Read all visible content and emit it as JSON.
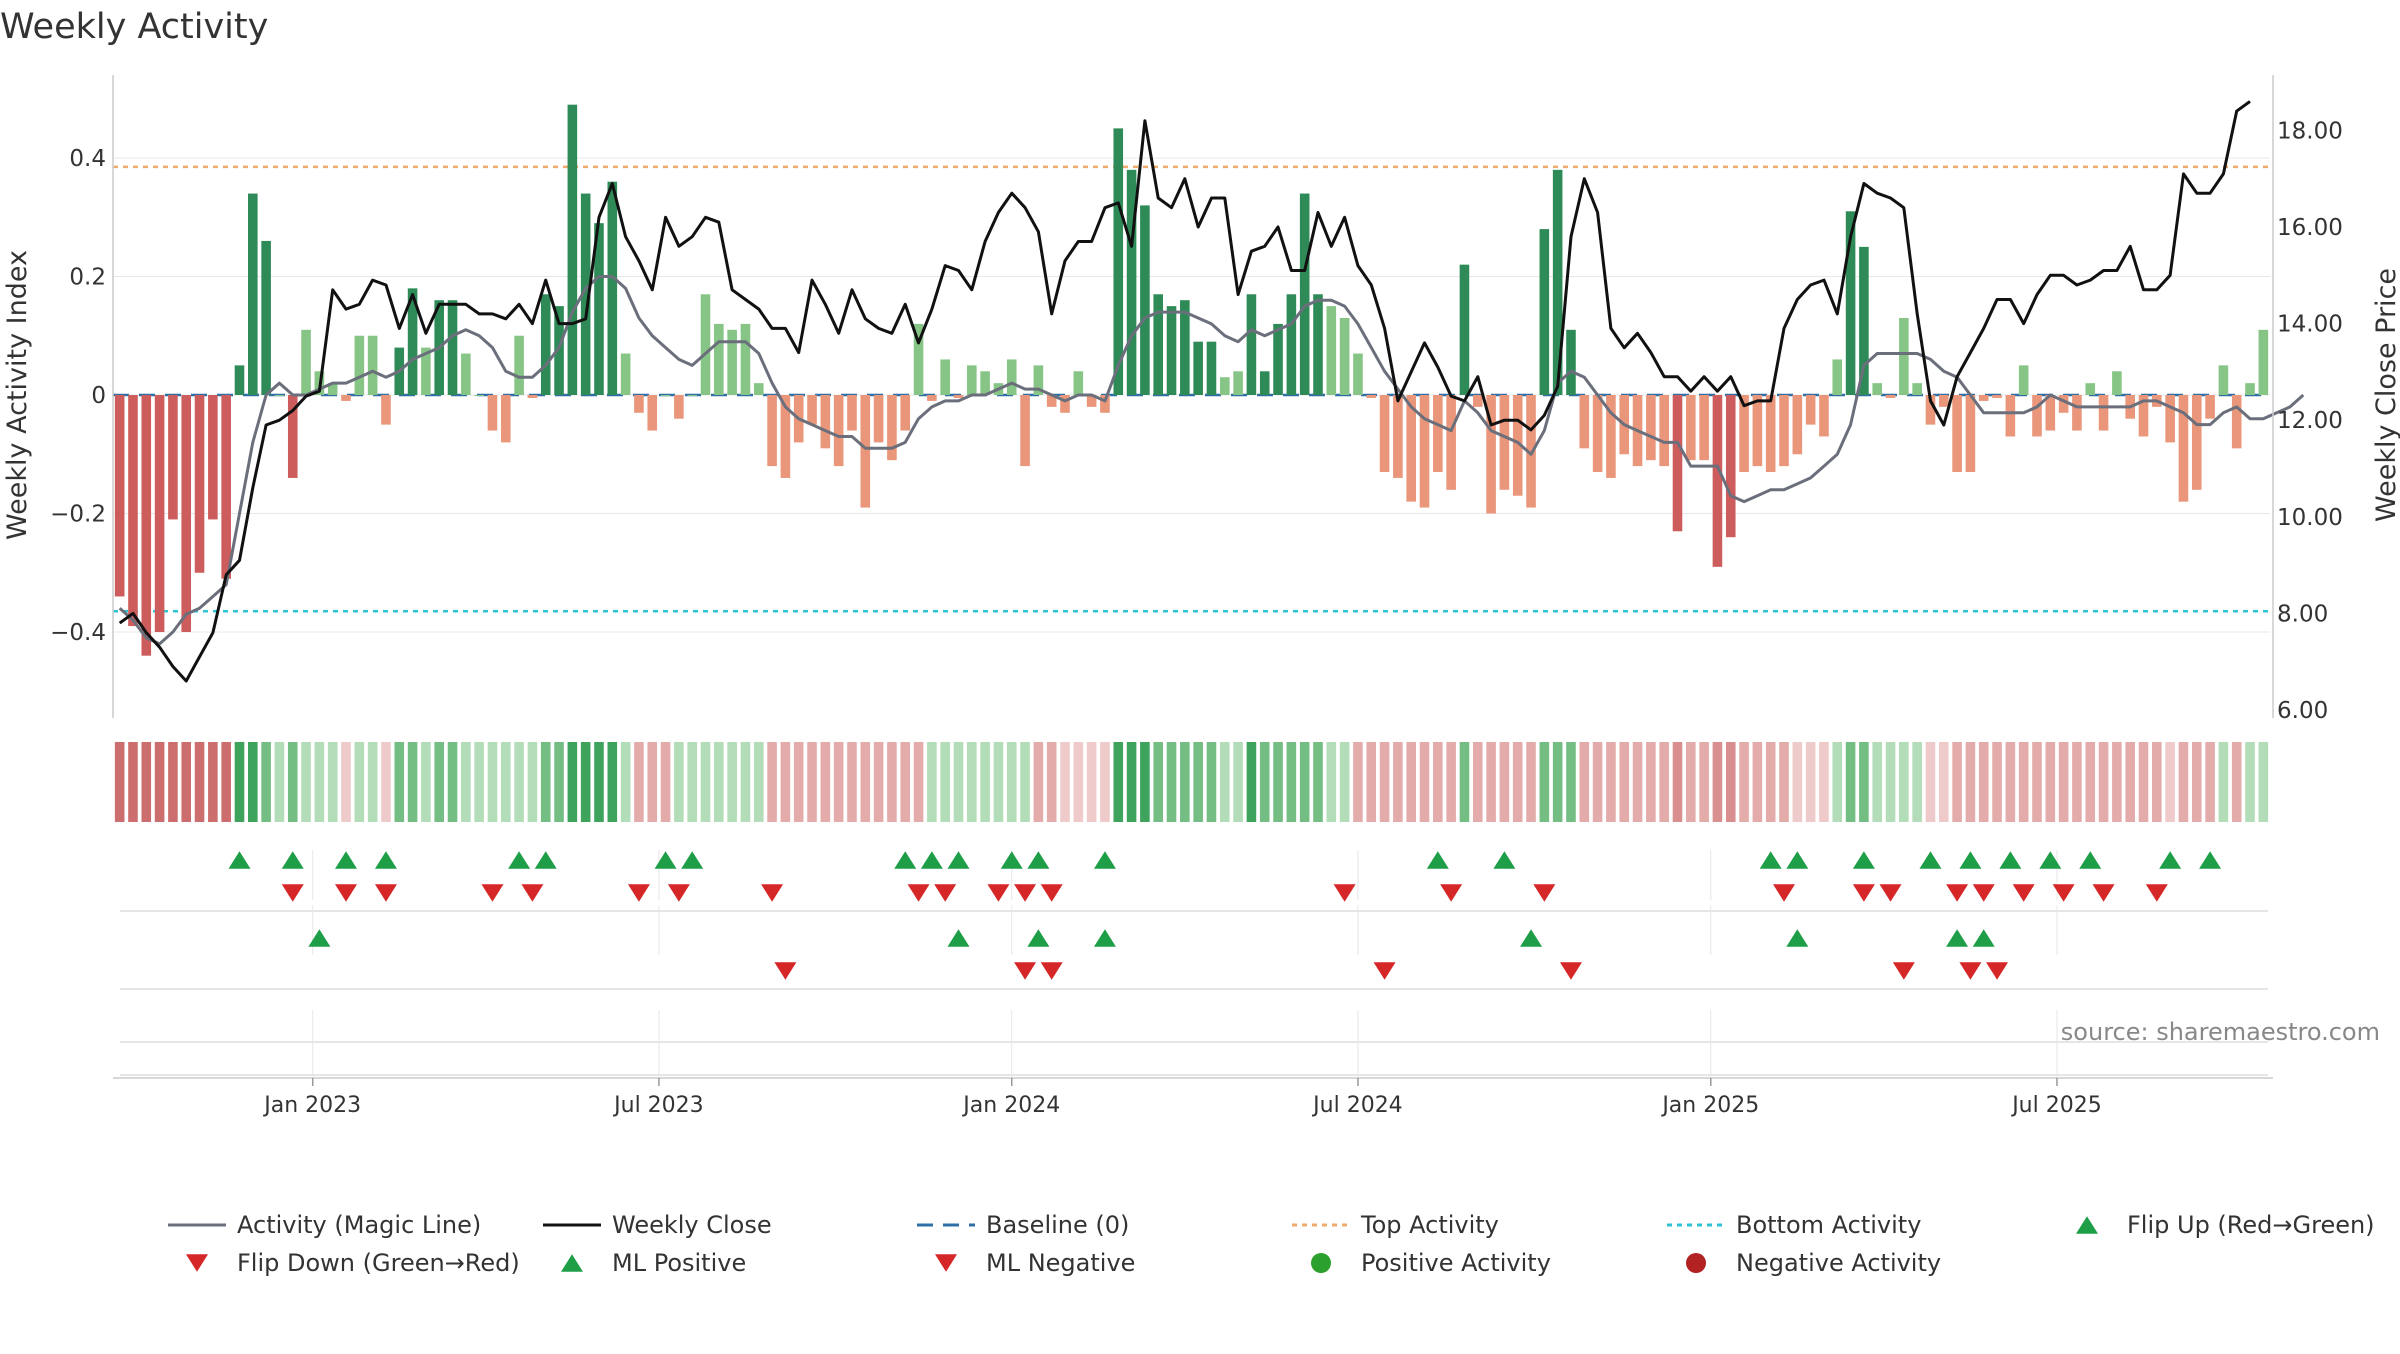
{
  "chart_data": {
    "type": "bar",
    "title": "Weekly Activity",
    "ylabel": "Weekly Activity Index",
    "y2label": "Weekly Close Price",
    "source": "source: sharemaestro.com",
    "ylim": [
      -0.53,
      0.53
    ],
    "y2lim": [
      6.0,
      18.6
    ],
    "yticks": [
      {
        "value": 0.4,
        "label": "0.4"
      },
      {
        "value": 0.2,
        "label": "0.2"
      },
      {
        "value": 0,
        "label": "0"
      },
      {
        "value": -0.2,
        "label": "−0.2"
      },
      {
        "value": -0.4,
        "label": "−0.4"
      }
    ],
    "y2ticks": [
      {
        "value": 18,
        "label": "18.00"
      },
      {
        "value": 16,
        "label": "16.00"
      },
      {
        "value": 14,
        "label": "14.00"
      },
      {
        "value": 12,
        "label": "12.00"
      },
      {
        "value": 10,
        "label": "10.00"
      },
      {
        "value": 8,
        "label": "8.00"
      },
      {
        "value": 6,
        "label": "6.00"
      }
    ],
    "xticks": [
      {
        "index": 14.5,
        "label": "Jan 2023"
      },
      {
        "index": 40.5,
        "label": "Jul 2023"
      },
      {
        "index": 67,
        "label": "Jan 2024"
      },
      {
        "index": 93,
        "label": "Jul 2024"
      },
      {
        "index": 119.5,
        "label": "Jan 2025"
      },
      {
        "index": 145.5,
        "label": "Jul 2025"
      }
    ],
    "top_activity": 0.385,
    "bottom_activity": -0.365,
    "activity": [
      -0.34,
      -0.39,
      -0.44,
      -0.4,
      -0.21,
      -0.4,
      -0.3,
      -0.21,
      -0.31,
      0.05,
      0.34,
      0.26,
      0.0,
      -0.14,
      0.11,
      0.04,
      0.02,
      -0.01,
      0.1,
      0.1,
      -0.05,
      0.08,
      0.18,
      0.08,
      0.16,
      0.16,
      0.07,
      0.0,
      -0.06,
      -0.08,
      0.1,
      -0.005,
      0.17,
      0.15,
      0.49,
      0.34,
      0.29,
      0.36,
      0.07,
      -0.03,
      -0.06,
      0.0,
      -0.04,
      0.0,
      0.17,
      0.12,
      0.11,
      0.12,
      0.02,
      -0.12,
      -0.14,
      -0.08,
      -0.05,
      -0.09,
      -0.12,
      -0.06,
      -0.19,
      -0.08,
      -0.11,
      -0.06,
      0.12,
      -0.01,
      0.06,
      -0.005,
      0.05,
      0.04,
      0.02,
      0.06,
      -0.12,
      0.05,
      -0.02,
      -0.03,
      0.04,
      -0.02,
      -0.03,
      0.45,
      0.38,
      0.32,
      0.17,
      0.15,
      0.16,
      0.09,
      0.09,
      0.03,
      0.04,
      0.17,
      0.04,
      0.12,
      0.17,
      0.34,
      0.17,
      0.15,
      0.13,
      0.07,
      -0.005,
      -0.13,
      -0.14,
      -0.18,
      -0.19,
      -0.13,
      -0.16,
      0.22,
      -0.02,
      -0.2,
      -0.16,
      -0.17,
      -0.19,
      0.28,
      0.38,
      0.11,
      -0.09,
      -0.13,
      -0.14,
      -0.1,
      -0.12,
      -0.11,
      -0.12,
      -0.23,
      -0.11,
      -0.11,
      -0.29,
      -0.24,
      -0.13,
      -0.12,
      -0.13,
      -0.12,
      -0.1,
      -0.05,
      -0.07,
      0.06,
      0.31,
      0.25,
      0.02,
      -0.005,
      0.13,
      0.02,
      -0.05,
      -0.02,
      -0.13,
      -0.13,
      -0.01,
      -0.005,
      -0.07,
      0.05,
      -0.07,
      -0.06,
      -0.03,
      -0.06,
      0.02,
      -0.06,
      0.04,
      -0.04,
      -0.07,
      -0.02,
      -0.08,
      -0.18,
      -0.16,
      -0.04,
      0.05,
      -0.09,
      0.02,
      0.11
    ],
    "heat": [
      -0.8,
      -0.8,
      -0.8,
      -0.8,
      -0.8,
      -0.8,
      -0.8,
      -0.8,
      -0.8,
      0.8,
      0.8,
      0.5,
      0.3,
      0.5,
      0.3,
      0.3,
      0.3,
      -0.2,
      0.3,
      0.3,
      -0.2,
      0.5,
      0.5,
      0.3,
      0.5,
      0.5,
      0.3,
      0.3,
      0.3,
      0.3,
      0.3,
      0.3,
      0.5,
      0.5,
      0.8,
      0.8,
      0.8,
      0.8,
      0.3,
      -0.3,
      -0.3,
      -0.3,
      0.3,
      0.3,
      0.3,
      0.3,
      0.3,
      0.3,
      0.3,
      -0.3,
      -0.3,
      -0.3,
      -0.3,
      -0.3,
      -0.3,
      -0.3,
      -0.3,
      -0.3,
      -0.3,
      -0.3,
      -0.3,
      0.3,
      0.3,
      0.3,
      0.3,
      0.3,
      0.3,
      0.3,
      0.3,
      -0.3,
      -0.3,
      -0.2,
      -0.2,
      -0.2,
      -0.2,
      0.8,
      0.8,
      0.8,
      0.5,
      0.5,
      0.5,
      0.5,
      0.5,
      0.3,
      0.3,
      0.8,
      0.5,
      0.5,
      0.5,
      0.5,
      0.5,
      0.3,
      0.3,
      -0.3,
      -0.3,
      -0.3,
      -0.3,
      -0.3,
      -0.3,
      -0.3,
      -0.3,
      0.5,
      -0.4,
      -0.4,
      -0.4,
      -0.4,
      -0.4,
      0.6,
      0.6,
      0.5,
      -0.3,
      -0.3,
      -0.3,
      -0.3,
      -0.3,
      -0.3,
      -0.3,
      -0.5,
      -0.3,
      -0.3,
      -0.6,
      -0.5,
      -0.3,
      -0.3,
      -0.3,
      -0.3,
      -0.2,
      -0.2,
      -0.2,
      0.3,
      0.6,
      0.6,
      0.3,
      0.3,
      0.3,
      0.3,
      -0.2,
      -0.2,
      -0.3,
      -0.3,
      -0.3,
      -0.3,
      -0.3,
      -0.3,
      -0.3,
      -0.3,
      -0.3,
      -0.3,
      -0.3,
      -0.3,
      -0.3,
      -0.3,
      -0.3,
      -0.3,
      -0.2,
      -0.3,
      -0.3,
      -0.3,
      0.3,
      -0.3,
      0.3,
      0.3
    ],
    "magic_line": [
      -0.36,
      -0.38,
      -0.41,
      -0.42,
      -0.4,
      -0.37,
      -0.36,
      -0.34,
      -0.32,
      -0.2,
      -0.08,
      0.0,
      0.02,
      0.0,
      0.0,
      0.01,
      0.02,
      0.02,
      0.03,
      0.04,
      0.03,
      0.04,
      0.06,
      0.07,
      0.08,
      0.1,
      0.11,
      0.1,
      0.08,
      0.04,
      0.03,
      0.03,
      0.05,
      0.08,
      0.14,
      0.18,
      0.2,
      0.2,
      0.18,
      0.13,
      0.1,
      0.08,
      0.06,
      0.05,
      0.07,
      0.09,
      0.09,
      0.09,
      0.07,
      0.02,
      -0.02,
      -0.04,
      -0.05,
      -0.06,
      -0.07,
      -0.07,
      -0.09,
      -0.09,
      -0.09,
      -0.08,
      -0.04,
      -0.02,
      -0.01,
      -0.01,
      0.0,
      0.0,
      0.01,
      0.02,
      0.01,
      0.01,
      0.0,
      -0.01,
      0.0,
      0.0,
      -0.01,
      0.05,
      0.1,
      0.13,
      0.14,
      0.14,
      0.14,
      0.13,
      0.12,
      0.1,
      0.09,
      0.11,
      0.1,
      0.11,
      0.12,
      0.15,
      0.16,
      0.16,
      0.15,
      0.12,
      0.08,
      0.04,
      0.01,
      -0.02,
      -0.04,
      -0.05,
      -0.06,
      -0.01,
      -0.03,
      -0.06,
      -0.07,
      -0.08,
      -0.1,
      -0.06,
      0.02,
      0.04,
      0.03,
      0.0,
      -0.03,
      -0.05,
      -0.06,
      -0.07,
      -0.08,
      -0.08,
      -0.12,
      -0.12,
      -0.12,
      -0.17,
      -0.18,
      -0.17,
      -0.16,
      -0.16,
      -0.15,
      -0.14,
      -0.12,
      -0.1,
      -0.05,
      0.05,
      0.07,
      0.07,
      0.07,
      0.07,
      0.06,
      0.04,
      0.03,
      0.0,
      -0.03,
      -0.03,
      -0.03,
      -0.03,
      -0.02,
      0.0,
      -0.01,
      -0.02,
      -0.02,
      -0.02,
      -0.02,
      -0.02,
      -0.01,
      -0.01,
      -0.02,
      -0.03,
      -0.05,
      -0.05,
      -0.03,
      -0.02,
      -0.04,
      -0.04,
      -0.03,
      -0.02,
      0.0
    ],
    "close": [
      7.8,
      8.0,
      7.6,
      7.3,
      6.9,
      6.6,
      7.1,
      7.6,
      8.8,
      9.1,
      10.6,
      11.9,
      12.0,
      12.2,
      12.5,
      12.6,
      14.7,
      14.3,
      14.4,
      14.9,
      14.8,
      13.9,
      14.6,
      13.8,
      14.4,
      14.4,
      14.4,
      14.2,
      14.2,
      14.1,
      14.4,
      14.0,
      14.9,
      14.0,
      14.0,
      14.1,
      16.2,
      16.9,
      15.8,
      15.3,
      14.7,
      16.2,
      15.6,
      15.8,
      16.2,
      16.1,
      14.7,
      14.5,
      14.3,
      13.9,
      13.9,
      13.4,
      14.9,
      14.4,
      13.8,
      14.7,
      14.1,
      13.9,
      13.8,
      14.4,
      13.6,
      14.3,
      15.2,
      15.1,
      14.7,
      15.7,
      16.3,
      16.7,
      16.4,
      15.9,
      14.2,
      15.3,
      15.7,
      15.7,
      16.4,
      16.5,
      15.6,
      18.2,
      16.6,
      16.4,
      17.0,
      16.0,
      16.6,
      16.6,
      14.6,
      15.5,
      15.6,
      16.0,
      15.1,
      15.1,
      16.3,
      15.6,
      16.2,
      15.2,
      14.8,
      13.9,
      12.4,
      13.0,
      13.6,
      13.1,
      12.5,
      12.4,
      12.9,
      11.9,
      12.0,
      12.0,
      11.8,
      12.1,
      12.7,
      15.8,
      17.0,
      16.3,
      13.9,
      13.5,
      13.8,
      13.4,
      12.9,
      12.9,
      12.6,
      12.9,
      12.6,
      12.9,
      12.3,
      12.4,
      12.4,
      13.9,
      14.5,
      14.8,
      14.9,
      14.2,
      15.8,
      16.9,
      16.7,
      16.6,
      16.4,
      14.2,
      12.4,
      11.9,
      12.9,
      13.4,
      13.9,
      14.5,
      14.5,
      14.0,
      14.6,
      15.0,
      15.0,
      14.8,
      14.9,
      15.1,
      15.1,
      15.6,
      14.7,
      14.7,
      15.0,
      17.1,
      16.7,
      16.7,
      17.1,
      18.4,
      18.6
    ],
    "flip_up": [
      9,
      13,
      17,
      20,
      30,
      32,
      41,
      43,
      59,
      61,
      63,
      67,
      69,
      74,
      99,
      104,
      124,
      126,
      131,
      136,
      139,
      142,
      145,
      148,
      154,
      157
    ],
    "flip_down": [
      13,
      17,
      20,
      28,
      31,
      39,
      42,
      49,
      60,
      62,
      66,
      68,
      70,
      92,
      100,
      107,
      125,
      131,
      133,
      138,
      140,
      143,
      146,
      149,
      153
    ],
    "ml_positive": [
      15,
      63,
      69,
      74,
      106,
      126,
      138,
      140
    ],
    "ml_negative": [
      50,
      68,
      70,
      95,
      109,
      134,
      139,
      141
    ],
    "legend": [
      {
        "label": "Activity (Magic Line)",
        "kind": "line",
        "color": "#6b6f7c"
      },
      {
        "label": "Weekly Close",
        "kind": "line",
        "color": "#111111"
      },
      {
        "label": "Baseline (0)",
        "kind": "dash",
        "color": "#2f6fa6"
      },
      {
        "label": "Top Activity",
        "kind": "dot",
        "color": "#efaa6c"
      },
      {
        "label": "Bottom Activity",
        "kind": "dot",
        "color": "#2ec4d6"
      },
      {
        "label": "Flip Up (Red→Green)",
        "kind": "up",
        "color": "#1f9e48"
      },
      {
        "label": "Flip Down (Green→Red)",
        "kind": "down",
        "color": "#d62728"
      },
      {
        "label": "ML Positive",
        "kind": "up",
        "color": "#1f9e48"
      },
      {
        "label": "ML Negative",
        "kind": "down",
        "color": "#d62728"
      },
      {
        "label": "Positive Activity",
        "kind": "circle",
        "color": "#2ca02c"
      },
      {
        "label": "Negative Activity",
        "kind": "circle",
        "color": "#b22222"
      }
    ],
    "colors": {
      "pos_strong": "#2e8b57",
      "pos_light": "#86c586",
      "neg_strong": "#cd5c5c",
      "neg_light": "#e9967a",
      "magic_line": "#6b6f7c",
      "close_line": "#111111",
      "baseline": "#2f6fa6",
      "top_line": "#efaa6c",
      "bottom_line": "#2ec4d6",
      "up_marker": "#1f9e48",
      "down_marker": "#d62728"
    }
  }
}
